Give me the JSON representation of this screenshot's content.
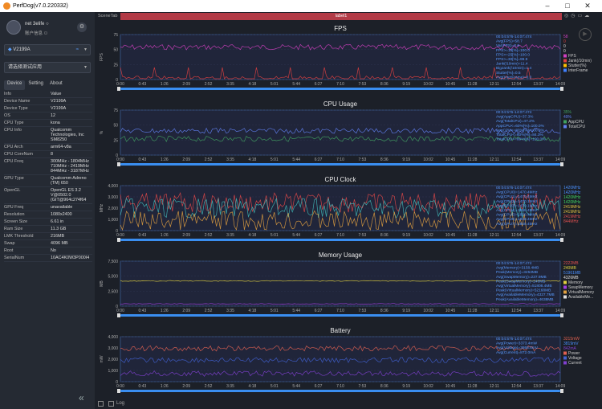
{
  "window": {
    "title": "PerfDog(v7.0.220332)",
    "minimize_icon": "minimize-icon",
    "maximize_icon": "maximize-icon",
    "close_icon": "close-icon"
  },
  "user": {
    "name": "net 3elife ○",
    "info": "账户信息 ⚇"
  },
  "device_select": {
    "value": "V2199A"
  },
  "app_select": {
    "value": "请选择测试应用"
  },
  "tabs": [
    "Device",
    "Setting",
    "About"
  ],
  "info_header": {
    "k": "Info",
    "v": "Value"
  },
  "device_info": [
    {
      "k": "Device Name",
      "v": "V2199A"
    },
    {
      "k": "Device Type",
      "v": "V2199A"
    },
    {
      "k": "OS",
      "v": "12"
    },
    {
      "k": "CPU Type",
      "v": "kona"
    },
    {
      "k": "CPU Info",
      "v": "Qualcomm Technologies, Inc SM8250"
    },
    {
      "k": "CPU Arch",
      "v": "arm64-v8a"
    },
    {
      "k": "CPU CoreNum",
      "v": "8"
    },
    {
      "k": "CPU Freq",
      "v": "300MHz - 1804MHz 710MHz - 2419MHz 844MHz - 3187MHz"
    },
    {
      "k": "GPU Type",
      "v": "Qualcomm Adreno (TM) 650"
    },
    {
      "k": "OpenGL",
      "v": "OpenGL ES 3.2 V@0502.0 (GIT@964c274f64"
    },
    {
      "k": "GPU Freq",
      "v": "unavailable"
    },
    {
      "k": "Resolution",
      "v": "1080x2400"
    },
    {
      "k": "Screen Size",
      "v": "6.61 in"
    },
    {
      "k": "Ram Size",
      "v": "11.3 GB"
    },
    {
      "k": "LMK Threshold",
      "v": "216MB"
    },
    {
      "k": "Swap",
      "v": "4096 MB"
    },
    {
      "k": "Root",
      "v": "No"
    },
    {
      "k": "SerialNum",
      "v": "10AC4K0W3P000I4"
    }
  ],
  "scene": {
    "tab": "SceneTab",
    "label": "label1"
  },
  "bottom": {
    "log": "Log"
  },
  "x_ticks": [
    "0:00",
    "0:43",
    "1:26",
    "2:09",
    "2:52",
    "3:35",
    "4:18",
    "5:01",
    "5:44",
    "6:27",
    "7:10",
    "7:53",
    "8:36",
    "9:19",
    "10:02",
    "10:45",
    "11:28",
    "12:11",
    "12:54",
    "13:37",
    "14:09"
  ],
  "charts": [
    {
      "title": "FPS",
      "ylabel": "FPS",
      "y_ticks": [
        "75",
        "50",
        "25",
        "0"
      ],
      "series": [
        {
          "name": "FPS",
          "color": "#d040c0",
          "level": 0.72
        },
        {
          "name": "Jank",
          "color": "#e04040",
          "level": 0.02
        }
      ],
      "stats": [
        "00:04:576-14:07:474",
        "Avg(FPS)=58.7",
        "Var(FPS)=0.6",
        "FPS>=18[%]=100.0",
        "FPS>=25[%]=100.0",
        "FPS>=30[%]=99.9",
        "Jank(/10min)=11.4",
        "BigJank(/10min)=1.4",
        "Stutter[%]=0.5",
        "Avg(InterFrame)=0.0"
      ],
      "legend_values": [
        {
          "text": "58",
          "color": "#d040c0"
        },
        {
          "text": "0",
          "color": "#e04040"
        },
        {
          "text": "0",
          "color": "#ddd"
        },
        {
          "text": "0",
          "color": "#ddd"
        }
      ],
      "legend_items": [
        {
          "text": "FPS",
          "color": "#d040c0"
        },
        {
          "text": "Jank(/10min)",
          "color": "#e04040"
        },
        {
          "text": "Stutter(%)",
          "color": "#ffc000"
        },
        {
          "text": "InterFrame",
          "color": "#4080ff"
        }
      ]
    },
    {
      "title": "CPU Usage",
      "ylabel": "%",
      "y_ticks": [
        "75",
        "50",
        "25",
        "0"
      ],
      "series": [
        {
          "name": "AppCPU",
          "color": "#40a060",
          "level": 0.36
        },
        {
          "name": "TotalCPU",
          "color": "#6080f0",
          "level": 0.54
        }
      ],
      "stats": [
        "00:04:576-14:07:474",
        "Avg(AppCPU)=37.3%",
        "Avg(TotalCPU)=47.2%",
        "AppCPU<=60%[%]=100.0%",
        "AppCPU<=80%[%]=100.0%",
        "TotalCPU<=60%[%]=84.3%",
        "TotalCPU<=80%[%]=100.0%"
      ],
      "legend_values": [
        {
          "text": "35%",
          "color": "#40a060"
        },
        {
          "text": "49%",
          "color": "#6080f0"
        }
      ],
      "legend_items": [
        {
          "text": "AppCPU",
          "color": "#40a060"
        },
        {
          "text": "TotalCPU",
          "color": "#6080f0"
        }
      ]
    },
    {
      "title": "CPU Clock",
      "ylabel": "MHz",
      "y_ticks": [
        "4,000",
        "3,000",
        "2,000",
        "1,000",
        "0"
      ],
      "series": [
        {
          "name": "CPU0-3",
          "color": "#e04848",
          "level": 0.62
        },
        {
          "name": "CPU4-6",
          "color": "#40b8b8",
          "level": 0.5
        },
        {
          "name": "CPU7",
          "color": "#e0a040",
          "level": 0.22
        }
      ],
      "stats": [
        "00:04:576-14:07:474",
        "Avg(CPU0)=1470.4MHz",
        "Avg(CPU1)=1470.4MHz",
        "Avg(CPU2)=1470.1MHz",
        "Avg(CPU3)=1470.1MHz",
        "Avg(CPU4)=1858.4MHz",
        "Avg(CPU5)=1858.4MHz",
        "Avg(CPU6)=1858.4MHz",
        "Avg(CPU7)=1858.4MHz"
      ],
      "legend_values": [
        {
          "text": "1420MHz",
          "color": "#4a90ff"
        },
        {
          "text": "1420MHz",
          "color": "#4a90ff"
        },
        {
          "text": "1420MHz",
          "color": "#40d060"
        },
        {
          "text": "1420MHz",
          "color": "#40d060"
        },
        {
          "text": "2419MHz",
          "color": "#e0c040"
        },
        {
          "text": "2419MHz",
          "color": "#e0c040"
        },
        {
          "text": "2419MHz",
          "color": "#e05050"
        },
        {
          "text": "844MHz",
          "color": "#e05050"
        }
      ],
      "legend_items": []
    },
    {
      "title": "Memory Usage",
      "ylabel": "MB",
      "y_ticks": [
        "7,500",
        "5,000",
        "2,500",
        "0"
      ],
      "series": [
        {
          "name": "Memory",
          "color": "#e0d040",
          "level": 0.56
        },
        {
          "name": "SwapMemory",
          "color": "#a040e0",
          "level": 0.05
        }
      ],
      "stats": [
        "00:04:576-14:07:474",
        "Avg(Memory)=3158.4MB",
        "Peak(Memory)=3253MB",
        "Avg(SwapMemory)=237.9MB",
        "Peak(SwapMemory)=240MB",
        "Avg(VirtualMemory)=51808.4MB",
        "Peak(VirtualMemory)=52168MB",
        "Avg(AvailableMemory)=4327.7MB",
        "Peak(AvailableMemory)=4638MB"
      ],
      "legend_values": [
        {
          "text": "2222MB",
          "color": "#e05050"
        },
        {
          "text": "240MB",
          "color": "#e0d040"
        },
        {
          "text": "51961MB",
          "color": "#4a90ff"
        },
        {
          "text": "4326MB",
          "color": "#e0e0e0"
        }
      ],
      "legend_items": [
        {
          "text": "Memory",
          "color": "#e0d040"
        },
        {
          "text": "SwapMemory",
          "color": "#a040e0"
        },
        {
          "text": "VirtualMemory",
          "color": "#e0a040"
        },
        {
          "text": "AvailableMe...",
          "color": "#e0e0e0"
        }
      ]
    },
    {
      "title": "Battery",
      "ylabel": "mW",
      "y_ticks": [
        "4,000",
        "3,000",
        "2,000",
        "1,000",
        "0"
      ],
      "series": [
        {
          "name": "Power",
          "color": "#e06050",
          "level": 0.74
        },
        {
          "name": "Voltage",
          "color": "#4060d0",
          "level": 0.48
        },
        {
          "name": "Current",
          "color": "#8040d0",
          "level": 0.18
        }
      ],
      "stats": [
        "00:04:576-14:07:474",
        "Avg(Power)=3373.4mW",
        "Avg(Voltage)=3868.5mV",
        "Avg(Current)=872.0mA"
      ],
      "legend_values": [
        {
          "text": "3215mW",
          "color": "#e06050"
        },
        {
          "text": "3819mV",
          "color": "#4a90ff"
        },
        {
          "text": "842mA",
          "color": "#8040d0"
        }
      ],
      "legend_items": [
        {
          "text": "Power",
          "color": "#e06050"
        },
        {
          "text": "Voltage",
          "color": "#4060d0"
        },
        {
          "text": "Current",
          "color": "#8040d0"
        }
      ]
    }
  ]
}
